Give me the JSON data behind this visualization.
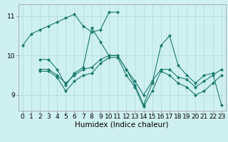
{
  "xlabel": "Humidex (Indice chaleur)",
  "xlim": [
    -0.5,
    23.5
  ],
  "ylim": [
    8.6,
    11.3
  ],
  "yticks": [
    9,
    10,
    11
  ],
  "xticks": [
    0,
    1,
    2,
    3,
    4,
    5,
    6,
    7,
    8,
    9,
    10,
    11,
    12,
    13,
    14,
    15,
    16,
    17,
    18,
    19,
    20,
    21,
    22,
    23
  ],
  "bg_color": "#cff0f0",
  "line_color": "#1a7a6e",
  "lines": [
    {
      "x": [
        0,
        1,
        2,
        3,
        4,
        5,
        6,
        7,
        8,
        9,
        10,
        11
      ],
      "y": [
        10.25,
        10.55,
        10.65,
        10.75,
        10.85,
        10.95,
        11.05,
        10.75,
        10.6,
        10.65,
        11.1,
        11.1
      ]
    },
    {
      "x": [
        2,
        3,
        4,
        5,
        6,
        7,
        8,
        9,
        10,
        11,
        12,
        13,
        14,
        15,
        16,
        17,
        18,
        19,
        20,
        21,
        22,
        23
      ],
      "y": [
        9.9,
        9.9,
        9.65,
        9.25,
        9.55,
        9.7,
        10.7,
        10.35,
        10.0,
        10.0,
        9.65,
        9.25,
        8.75,
        9.3,
        10.25,
        10.5,
        9.75,
        9.5,
        9.3,
        9.5,
        9.55,
        8.75
      ]
    },
    {
      "x": [
        2,
        3,
        4,
        5,
        6,
        7,
        8,
        9,
        10,
        11,
        12,
        13,
        14,
        15,
        16,
        17,
        18,
        19,
        20,
        21,
        22,
        23
      ],
      "y": [
        9.65,
        9.65,
        9.5,
        9.3,
        9.5,
        9.65,
        9.7,
        9.9,
        10.0,
        10.0,
        9.65,
        9.35,
        9.0,
        9.35,
        9.65,
        9.65,
        9.45,
        9.4,
        9.2,
        9.35,
        9.5,
        9.65
      ]
    },
    {
      "x": [
        2,
        3,
        4,
        5,
        6,
        7,
        8,
        9,
        10,
        11,
        12,
        13,
        14,
        15,
        16,
        17,
        18,
        19,
        20,
        21,
        22,
        23
      ],
      "y": [
        9.6,
        9.6,
        9.45,
        9.1,
        9.35,
        9.5,
        9.55,
        9.8,
        9.95,
        9.95,
        9.5,
        9.2,
        8.7,
        9.1,
        9.6,
        9.5,
        9.3,
        9.2,
        9.0,
        9.1,
        9.3,
        9.5
      ]
    }
  ],
  "grid_color": "#aadada",
  "tick_fontsize": 6.5,
  "label_fontsize": 7.5
}
